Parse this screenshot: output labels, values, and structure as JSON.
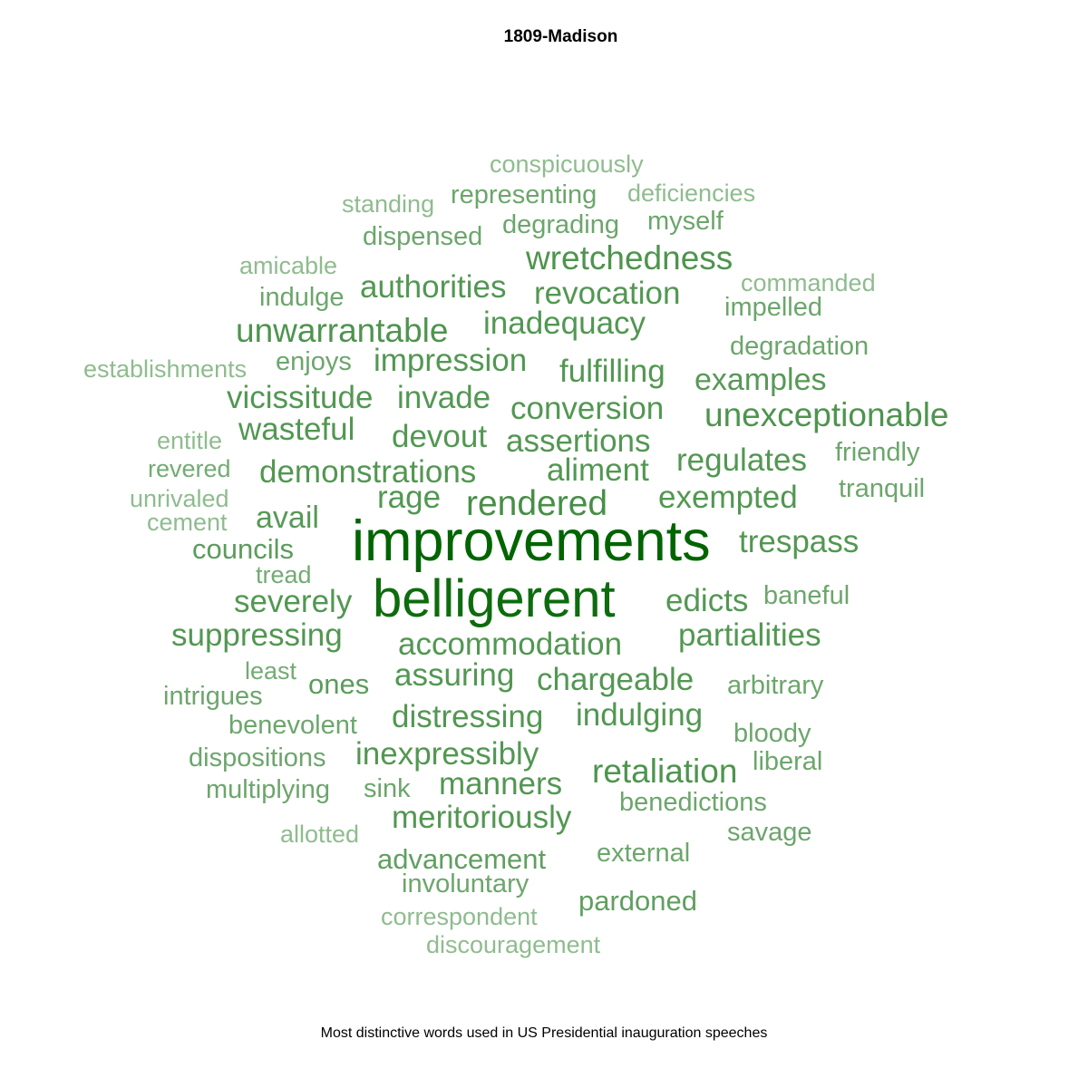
{
  "chart_data": {
    "type": "wordcloud",
    "title": "1809-Madison",
    "caption": "Most distinctive words used in US Presidential inauguration speeches",
    "color_scale": {
      "low": "#8fbc8f",
      "high": "#006400"
    },
    "words": [
      {
        "text": "improvements",
        "weight": 1.0
      },
      {
        "text": "belligerent",
        "weight": 0.88
      },
      {
        "text": "rendered",
        "weight": 0.46
      },
      {
        "text": "unexceptionable",
        "weight": 0.42
      },
      {
        "text": "wretchedness",
        "weight": 0.42
      },
      {
        "text": "unwarrantable",
        "weight": 0.42
      },
      {
        "text": "retaliation",
        "weight": 0.42
      },
      {
        "text": "inadequacy",
        "weight": 0.4
      },
      {
        "text": "vicissitude",
        "weight": 0.4
      },
      {
        "text": "invade",
        "weight": 0.4
      },
      {
        "text": "authorities",
        "weight": 0.4
      },
      {
        "text": "revocation",
        "weight": 0.4
      },
      {
        "text": "impression",
        "weight": 0.4
      },
      {
        "text": "fulfilling",
        "weight": 0.4
      },
      {
        "text": "conversion",
        "weight": 0.4
      },
      {
        "text": "wasteful",
        "weight": 0.4
      },
      {
        "text": "devout",
        "weight": 0.4
      },
      {
        "text": "assertions",
        "weight": 0.4
      },
      {
        "text": "regulates",
        "weight": 0.4
      },
      {
        "text": "demonstrations",
        "weight": 0.4
      },
      {
        "text": "aliment",
        "weight": 0.4
      },
      {
        "text": "exempted",
        "weight": 0.4
      },
      {
        "text": "rage",
        "weight": 0.4
      },
      {
        "text": "trespass",
        "weight": 0.4
      },
      {
        "text": "severely",
        "weight": 0.4
      },
      {
        "text": "edicts",
        "weight": 0.4
      },
      {
        "text": "suppressing",
        "weight": 0.4
      },
      {
        "text": "partialities",
        "weight": 0.4
      },
      {
        "text": "accommodation",
        "weight": 0.4
      },
      {
        "text": "assuring",
        "weight": 0.4
      },
      {
        "text": "chargeable",
        "weight": 0.4
      },
      {
        "text": "distressing",
        "weight": 0.4
      },
      {
        "text": "indulging",
        "weight": 0.4
      },
      {
        "text": "inexpressibly",
        "weight": 0.4
      },
      {
        "text": "manners",
        "weight": 0.4
      },
      {
        "text": "meritoriously",
        "weight": 0.4
      },
      {
        "text": "examples",
        "weight": 0.38
      },
      {
        "text": "avail",
        "weight": 0.38
      },
      {
        "text": "councils",
        "weight": 0.36
      },
      {
        "text": "ones",
        "weight": 0.36
      },
      {
        "text": "advancement",
        "weight": 0.34
      },
      {
        "text": "pardoned",
        "weight": 0.34
      },
      {
        "text": "representing",
        "weight": 0.3
      },
      {
        "text": "degrading",
        "weight": 0.3
      },
      {
        "text": "myself",
        "weight": 0.3
      },
      {
        "text": "dispensed",
        "weight": 0.3
      },
      {
        "text": "indulge",
        "weight": 0.3
      },
      {
        "text": "impelled",
        "weight": 0.3
      },
      {
        "text": "degradation",
        "weight": 0.3
      },
      {
        "text": "enjoys",
        "weight": 0.3
      },
      {
        "text": "friendly",
        "weight": 0.3
      },
      {
        "text": "tranquil",
        "weight": 0.3
      },
      {
        "text": "baneful",
        "weight": 0.3
      },
      {
        "text": "arbitrary",
        "weight": 0.3
      },
      {
        "text": "intrigues",
        "weight": 0.3
      },
      {
        "text": "bloody",
        "weight": 0.3
      },
      {
        "text": "dispositions",
        "weight": 0.3
      },
      {
        "text": "benevolent",
        "weight": 0.3
      },
      {
        "text": "liberal",
        "weight": 0.3
      },
      {
        "text": "multiplying",
        "weight": 0.3
      },
      {
        "text": "sink",
        "weight": 0.3
      },
      {
        "text": "benedictions",
        "weight": 0.3
      },
      {
        "text": "savage",
        "weight": 0.3
      },
      {
        "text": "external",
        "weight": 0.3
      },
      {
        "text": "involuntary",
        "weight": 0.3
      },
      {
        "text": "revered",
        "weight": 0.28
      },
      {
        "text": "least",
        "weight": 0.28
      },
      {
        "text": "tread",
        "weight": 0.28
      },
      {
        "text": "conspicuously",
        "weight": 0.24
      },
      {
        "text": "standing",
        "weight": 0.24
      },
      {
        "text": "deficiencies",
        "weight": 0.24
      },
      {
        "text": "amicable",
        "weight": 0.24
      },
      {
        "text": "commanded",
        "weight": 0.24
      },
      {
        "text": "establishments",
        "weight": 0.24
      },
      {
        "text": "entitle",
        "weight": 0.24
      },
      {
        "text": "unrivaled",
        "weight": 0.24
      },
      {
        "text": "cement",
        "weight": 0.24
      },
      {
        "text": "allotted",
        "weight": 0.24
      },
      {
        "text": "correspondent",
        "weight": 0.24
      },
      {
        "text": "discouragement",
        "weight": 0.24
      }
    ]
  }
}
